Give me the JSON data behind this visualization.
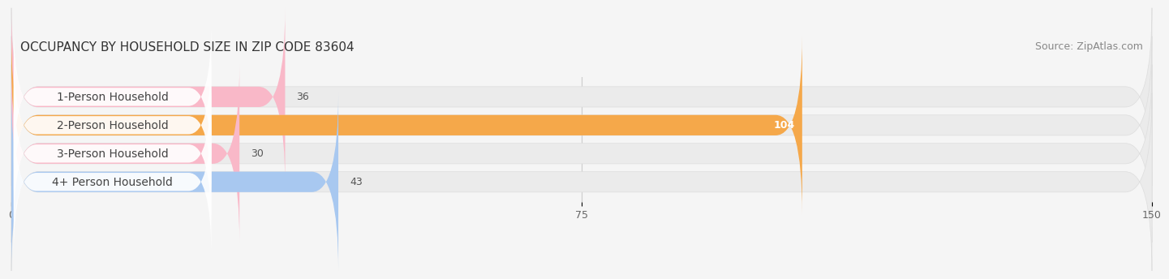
{
  "title": "OCCUPANCY BY HOUSEHOLD SIZE IN ZIP CODE 83604",
  "source": "Source: ZipAtlas.com",
  "categories": [
    "1-Person Household",
    "2-Person Household",
    "3-Person Household",
    "4+ Person Household"
  ],
  "values": [
    36,
    104,
    30,
    43
  ],
  "bar_colors": [
    "#f9b8c8",
    "#f5a84a",
    "#f9b8c8",
    "#a8c8f0"
  ],
  "xlim": [
    0,
    150
  ],
  "xticks": [
    0,
    75,
    150
  ],
  "title_fontsize": 11,
  "source_fontsize": 9,
  "label_fontsize": 10,
  "value_fontsize": 9,
  "bar_height": 0.72,
  "fig_bg_color": "#f5f5f5",
  "bar_bg_color": "#ebebeb",
  "label_bg_color": "#ffffff"
}
